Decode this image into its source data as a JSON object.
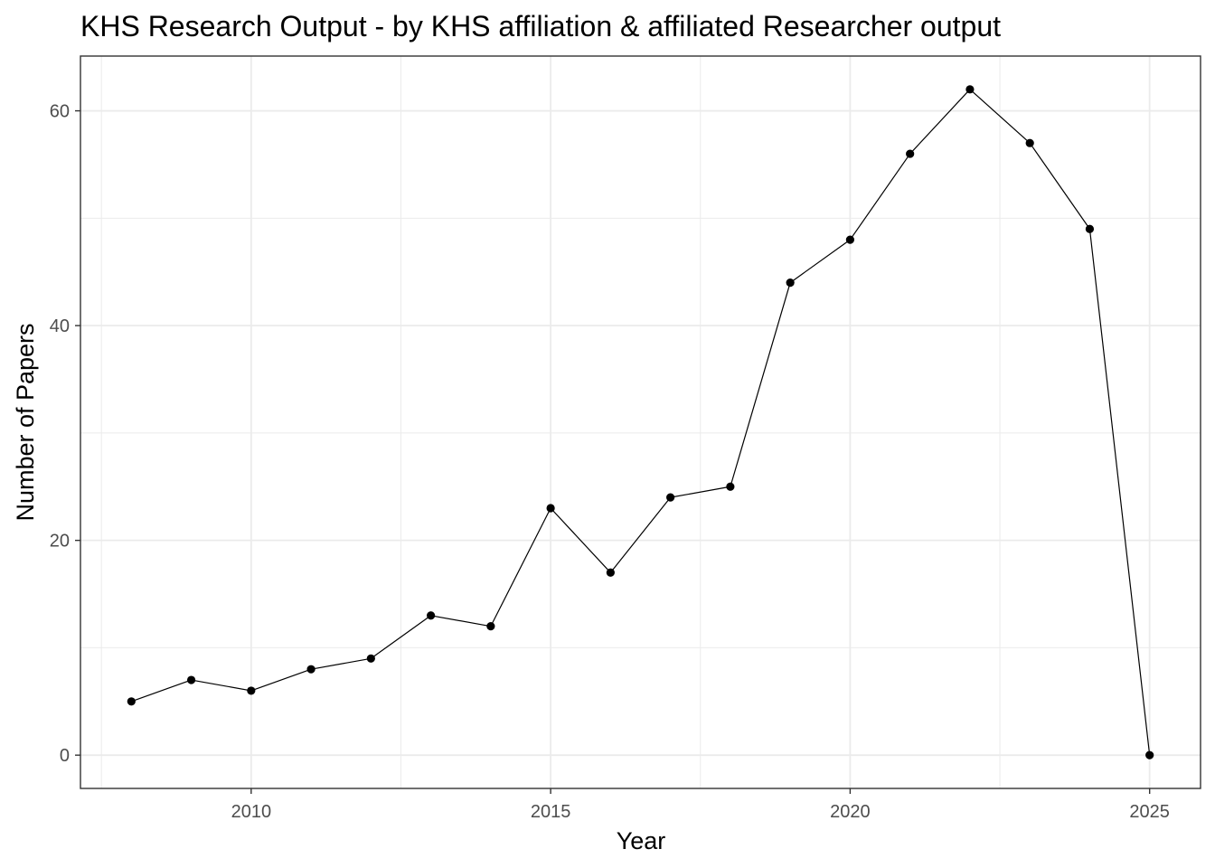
{
  "chart_data": {
    "type": "line",
    "title": "KHS Research Output - by KHS affiliation & affiliated Researcher output",
    "xlabel": "Year",
    "ylabel": "Number of Papers",
    "x": [
      2008,
      2009,
      2010,
      2011,
      2012,
      2013,
      2014,
      2015,
      2016,
      2017,
      2018,
      2019,
      2020,
      2021,
      2022,
      2023,
      2024,
      2025
    ],
    "series": [
      {
        "values": [
          5,
          7,
          6,
          8,
          9,
          13,
          12,
          23,
          17,
          24,
          25,
          44,
          48,
          56,
          62,
          57,
          49,
          0
        ]
      }
    ],
    "xlim": [
      2007.15,
      2025.85
    ],
    "ylim": [
      -3.1,
      65.1
    ],
    "x_ticks": [
      2010,
      2015,
      2020,
      2025
    ],
    "x_tick_labels": [
      "2010",
      "2015",
      "2020",
      "2025"
    ],
    "x_minor_ticks": [
      2007.5,
      2012.5,
      2017.5,
      2022.5
    ],
    "y_ticks": [
      0,
      20,
      40,
      60
    ],
    "y_tick_labels": [
      "0",
      "20",
      "40",
      "60"
    ],
    "y_minor_ticks": [
      10,
      30,
      50
    ],
    "grid": true,
    "legend": "none",
    "colors": {
      "line": "#000000",
      "point": "#000000",
      "grid": "#ebebeb",
      "panel_border": "#333333",
      "tick_text": "#4d4d4d"
    }
  }
}
